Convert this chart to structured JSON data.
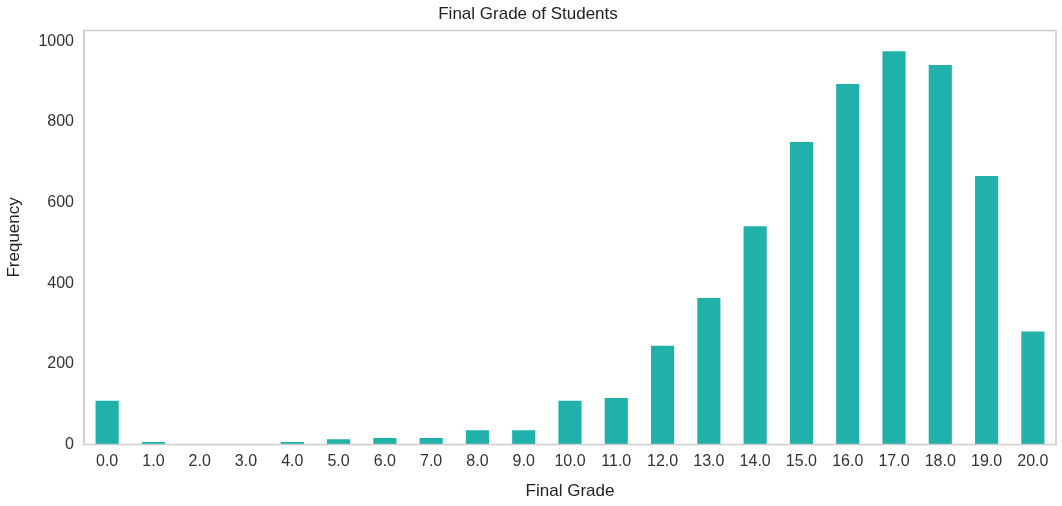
{
  "chart_data": {
    "type": "bar",
    "title": "Final Grade of Students",
    "xlabel": "Final Grade",
    "ylabel": "Frequency",
    "categories": [
      "0.0",
      "1.0",
      "2.0",
      "3.0",
      "4.0",
      "5.0",
      "6.0",
      "7.0",
      "8.0",
      "9.0",
      "10.0",
      "11.0",
      "12.0",
      "13.0",
      "14.0",
      "15.0",
      "16.0",
      "17.0",
      "18.0",
      "19.0",
      "20.0"
    ],
    "values": [
      108,
      6,
      1,
      1,
      6,
      13,
      16,
      16,
      35,
      35,
      108,
      115,
      245,
      363,
      541,
      750,
      894,
      975,
      941,
      666,
      280
    ],
    "color": "#20b2aa",
    "ylim": [
      0,
      1027
    ],
    "yticks": [
      0,
      200,
      400,
      600,
      800,
      1000
    ],
    "grid": false,
    "legend": false
  }
}
